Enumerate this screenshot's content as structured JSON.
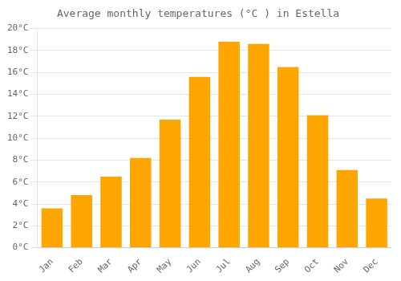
{
  "chart_data": {
    "type": "bar",
    "title": "Average monthly temperatures (°C ) in Estella",
    "categories": [
      "Jan",
      "Feb",
      "Mar",
      "Apr",
      "May",
      "Jun",
      "Jul",
      "Aug",
      "Sep",
      "Oct",
      "Nov",
      "Dec"
    ],
    "values": [
      3.6,
      4.8,
      6.5,
      8.2,
      11.7,
      15.6,
      18.8,
      18.6,
      16.5,
      12.1,
      7.1,
      4.5
    ],
    "color": "#FFA500",
    "ylim": [
      0,
      20
    ],
    "yticks": [
      {
        "value": 0,
        "label": "0°C"
      },
      {
        "value": 2,
        "label": "2°C"
      },
      {
        "value": 4,
        "label": "4°C"
      },
      {
        "value": 6,
        "label": "6°C"
      },
      {
        "value": 8,
        "label": "8°C"
      },
      {
        "value": 10,
        "label": "10°C"
      },
      {
        "value": 12,
        "label": "12°C"
      },
      {
        "value": 14,
        "label": "14°C"
      },
      {
        "value": 16,
        "label": "16°C"
      },
      {
        "value": 18,
        "label": "18°C"
      },
      {
        "value": 20,
        "label": "20°C"
      }
    ],
    "grid": true
  }
}
